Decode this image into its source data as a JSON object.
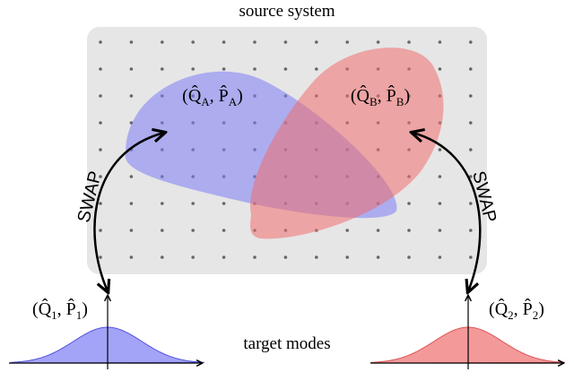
{
  "title": "source system",
  "states": [
    {
      "parts": [
        "(Q̂",
        "A",
        ", P̂",
        "A",
        ")"
      ]
    },
    {
      "parts": [
        "(Q̂",
        "B",
        ", P̂",
        "B",
        ")"
      ]
    }
  ],
  "swaps": [
    "SWAP",
    "SWAP"
  ],
  "modes": [
    {
      "parts": [
        "(Q̂",
        "1",
        ", P̂",
        "1",
        ")"
      ]
    },
    {
      "parts": [
        "(Q̂",
        "2",
        ", P̂",
        "2",
        ")"
      ]
    }
  ],
  "footer": "target modes"
}
